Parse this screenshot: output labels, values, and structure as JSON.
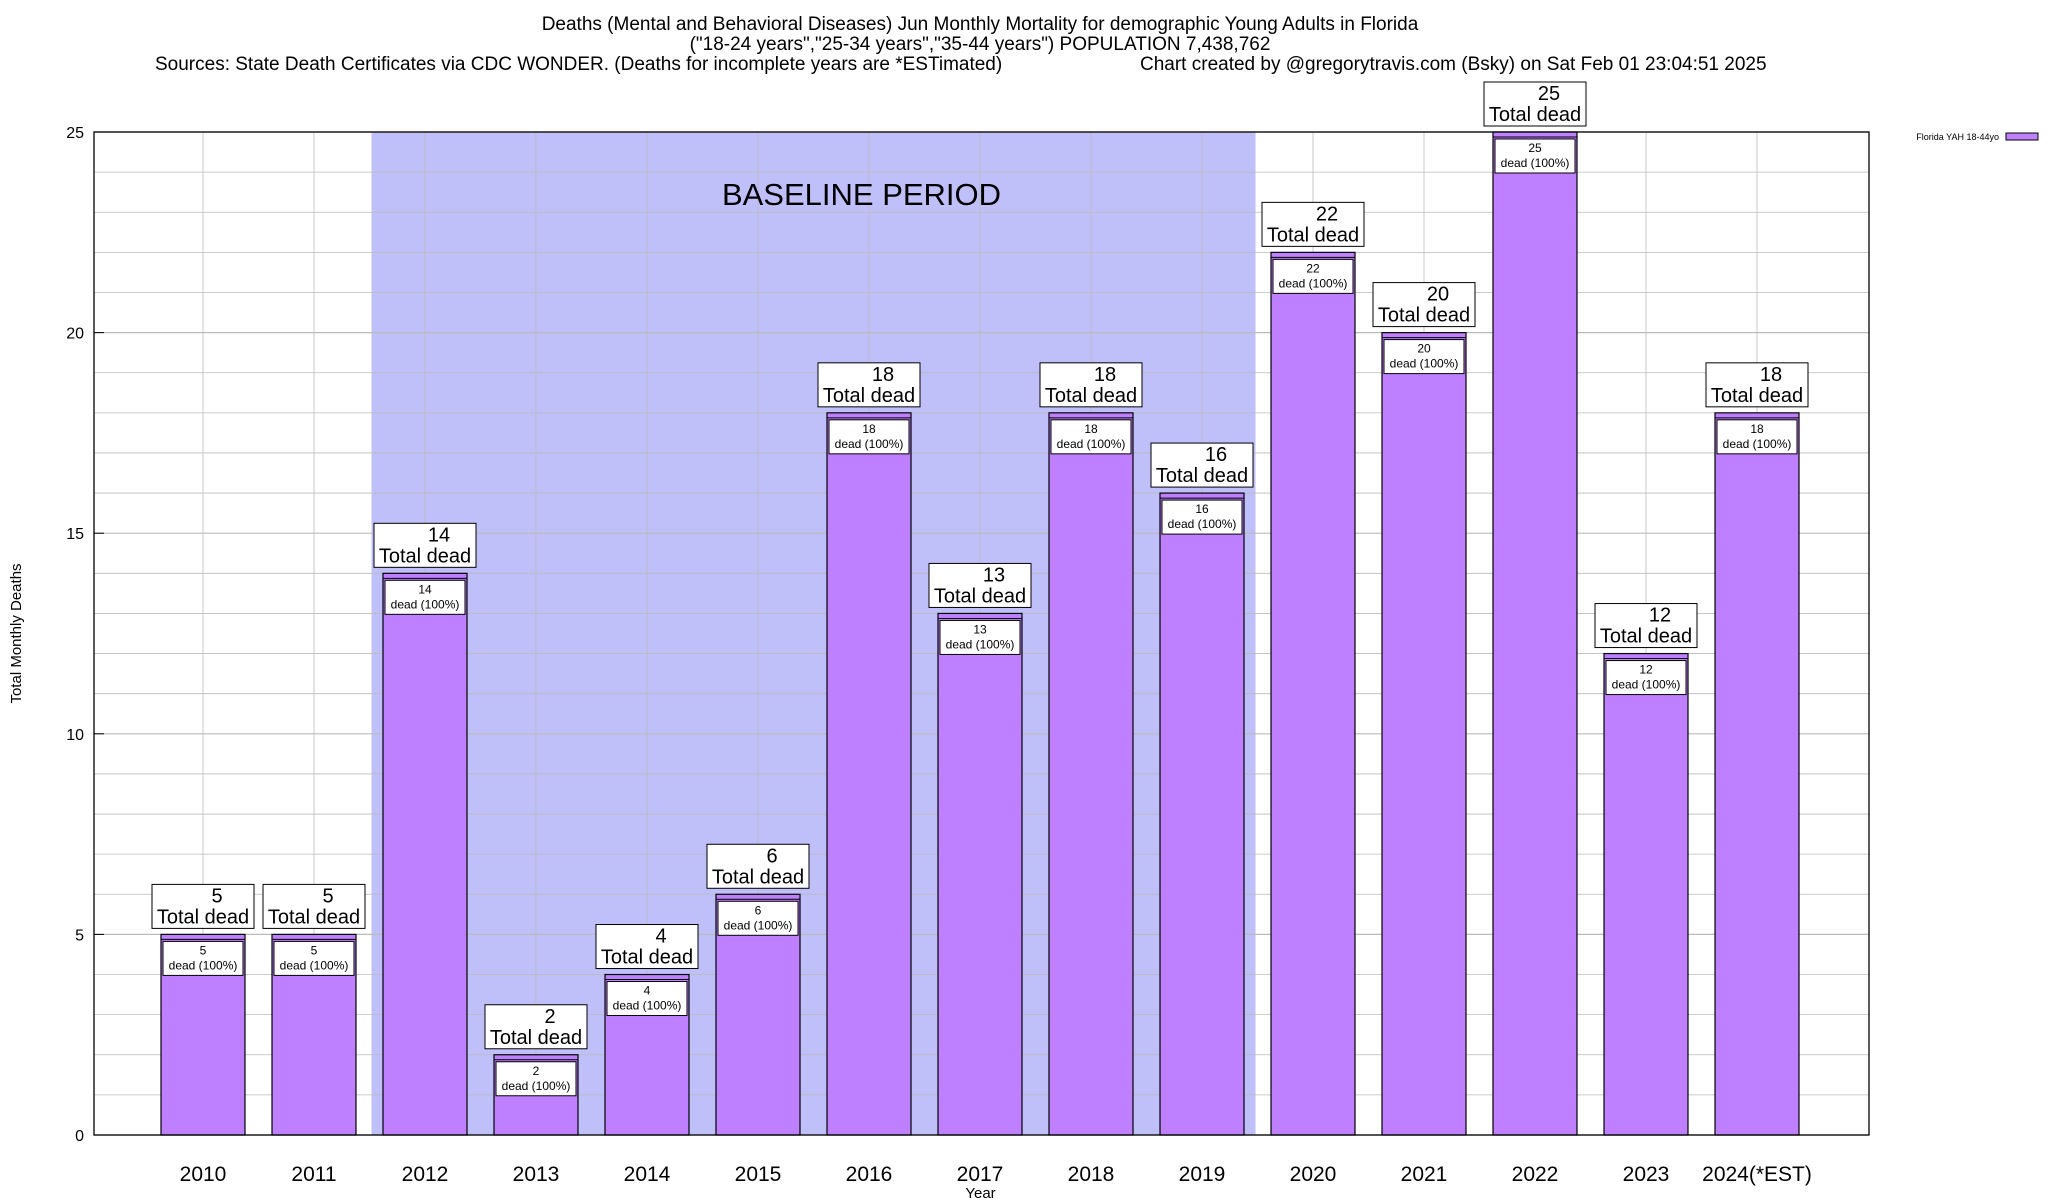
{
  "titles": {
    "line1": "Deaths (Mental and Behavioral Diseases) Jun Monthly Mortality for demographic Young Adults in Florida",
    "line2": "(\"18-24 years\",\"25-34 years\",\"35-44 years\") POPULATION 7,438,762",
    "line3": "Sources: State Death Certificates via CDC WONDER. (Deaths for incomplete years are *ESTimated)",
    "line4": "Chart created by @gregorytravis.com (Bsky) on Sat Feb 01 23:04:51 2025"
  },
  "colors": {
    "bar": "#bf80ff",
    "baseline": "#bfbffa",
    "grid": "#bbbbbb"
  },
  "chart_data": {
    "type": "bar",
    "title": "Deaths (Mental and Behavioral Diseases) Jun Monthly Mortality for demographic Young Adults in Florida",
    "xlabel": "Year",
    "ylabel": "Total Monthly Deaths",
    "ylim": [
      0,
      25
    ],
    "yticks": [
      0,
      5,
      10,
      15,
      20,
      25
    ],
    "categories": [
      "2010",
      "2011",
      "2012",
      "2013",
      "2014",
      "2015",
      "2016",
      "2017",
      "2018",
      "2019",
      "2020",
      "2021",
      "2022",
      "2023",
      "2024(*EST)"
    ],
    "series": [
      {
        "name": "Florida YAH 18-44yo",
        "values": [
          5,
          5,
          14,
          2,
          4,
          6,
          18,
          13,
          18,
          16,
          22,
          20,
          25,
          12,
          18
        ]
      }
    ],
    "top_label_suffix": "Total dead",
    "inner_label_suffix": "dead (100%)",
    "baseline_period": {
      "label": "BASELINE PERIOD",
      "from": "2012",
      "to": "2019"
    },
    "legend_position": "top-right"
  }
}
